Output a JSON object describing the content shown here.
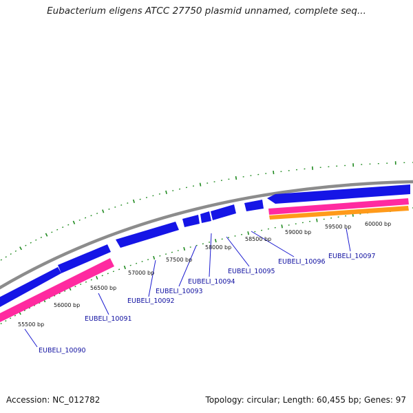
{
  "title": "Eubacterium eligens ATCC 27750 plasmid unnamed, complete seq...",
  "footer": {
    "accession": "Accession: NC_012782",
    "summary": "Topology: circular; Length: 60,455 bp; Genes: 97"
  },
  "colors": {
    "backbone": "#8c8c8c",
    "cds": "#1515e6",
    "gene_pink": "#ff2aa0",
    "gene_orange": "#ff9a1a",
    "tick": "#1f8a1f",
    "label": "#1010a0"
  },
  "bp_labels": [
    "55500 bp",
    "56000 bp",
    "56500 bp",
    "57000 bp",
    "57500 bp",
    "58000 bp",
    "58500 bp",
    "59000 bp",
    "59500 bp",
    "60000 bp"
  ],
  "gene_labels": [
    "EUBELI_10090",
    "EUBELI_10091",
    "EUBELI_10092",
    "EUBELI_10093",
    "EUBELI_10094",
    "EUBELI_10095",
    "EUBELI_10096",
    "EUBELI_10097"
  ]
}
